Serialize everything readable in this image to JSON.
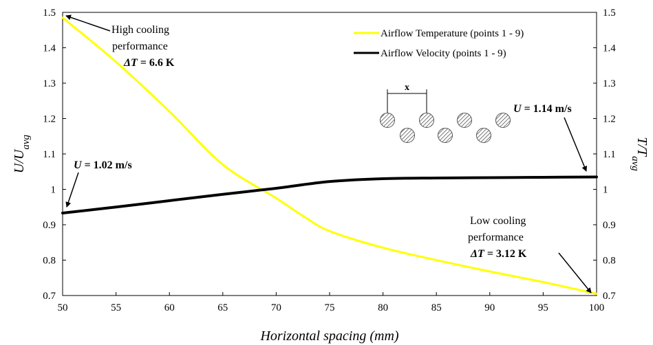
{
  "chart_data": {
    "type": "line",
    "xlabel": "Horizontal spacing (mm)",
    "ylabel_left": {
      "main": "U/U",
      "sub": "avg"
    },
    "ylabel_right": {
      "main": "T/T",
      "sub": "avg"
    },
    "xlim": [
      50,
      100
    ],
    "ylim": [
      0.7,
      1.5
    ],
    "x_ticks": [
      "50",
      "55",
      "60",
      "65",
      "70",
      "75",
      "80",
      "85",
      "90",
      "95",
      "100"
    ],
    "y_ticks": [
      "0.7",
      "0.8",
      "0.9",
      "1",
      "1.1",
      "1.2",
      "1.3",
      "1.4",
      "1.5"
    ],
    "grid": false,
    "legend_position": "top-right",
    "series": [
      {
        "name": "Airflow Temperature (points 1 - 9)",
        "color": "#FFFF00",
        "x": [
          50,
          55,
          60,
          65,
          70,
          72.5,
          75,
          80,
          85,
          90,
          95,
          100
        ],
        "y": [
          1.485,
          1.36,
          1.22,
          1.07,
          0.975,
          0.925,
          0.882,
          0.835,
          0.8,
          0.768,
          0.738,
          0.705
        ]
      },
      {
        "name": "Airflow Velocity (points 1 - 9)",
        "color": "#000000",
        "x": [
          50,
          55,
          60,
          65,
          70,
          75,
          80,
          85,
          90,
          95,
          100
        ],
        "y": [
          0.933,
          0.95,
          0.968,
          0.986,
          1.003,
          1.022,
          1.03,
          1.032,
          1.033,
          1.034,
          1.035
        ]
      }
    ],
    "annotations": {
      "high": {
        "line1": "High cooling",
        "line2": "performance",
        "dt_sym": "ΔT",
        "dt_val": " = 6.6 K"
      },
      "low": {
        "line1": "Low cooling",
        "line2": "performance",
        "dt_sym": "ΔT",
        "dt_val": " = 3.12 K"
      },
      "u_left": {
        "sym": "U",
        "val": " = 1.02 m/s"
      },
      "u_right": {
        "sym": "U",
        "val": " = 1.14 m/s"
      },
      "spacing_label": "x"
    }
  }
}
